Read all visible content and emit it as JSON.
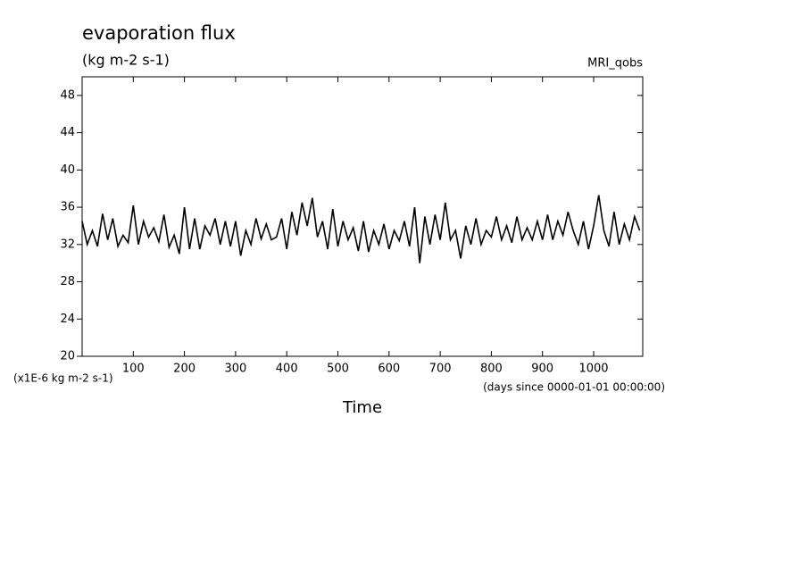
{
  "chart_data": {
    "type": "line",
    "title": "evaporation flux",
    "subtitle": "(kg m-2 s-1)",
    "dataset": "MRI_qobs",
    "y_label": "(x1E-6 kg m-2 s-1)",
    "x_units": "(days since 0000-01-01 00:00:00)",
    "x_label": "Time",
    "color": "#000000",
    "xlim": [
      0,
      1096
    ],
    "ylim": [
      20,
      50
    ],
    "xticks": [
      100,
      200,
      300,
      400,
      500,
      600,
      700,
      800,
      900,
      1000
    ],
    "yticks": [
      20,
      24,
      28,
      32,
      36,
      40,
      44,
      48
    ],
    "x": [
      0,
      10,
      20,
      30,
      40,
      50,
      60,
      70,
      80,
      90,
      100,
      110,
      120,
      130,
      140,
      150,
      160,
      170,
      180,
      190,
      200,
      210,
      220,
      230,
      240,
      250,
      260,
      270,
      280,
      290,
      300,
      310,
      320,
      330,
      340,
      350,
      360,
      370,
      380,
      390,
      400,
      410,
      420,
      430,
      440,
      450,
      460,
      470,
      480,
      490,
      500,
      510,
      520,
      530,
      540,
      550,
      560,
      570,
      580,
      590,
      600,
      610,
      620,
      630,
      640,
      650,
      660,
      670,
      680,
      690,
      700,
      710,
      720,
      730,
      740,
      750,
      760,
      770,
      780,
      790,
      800,
      810,
      820,
      830,
      840,
      850,
      860,
      870,
      880,
      890,
      900,
      910,
      920,
      930,
      940,
      950,
      960,
      970,
      980,
      990,
      1000,
      1010,
      1020,
      1030,
      1040,
      1050,
      1060,
      1070,
      1080,
      1090
    ],
    "values": [
      34.5,
      32,
      33.5,
      31.8,
      35.3,
      32.5,
      34.8,
      31.8,
      33,
      32.2,
      36.2,
      32,
      34.5,
      32.8,
      33.8,
      32.3,
      35.2,
      31.7,
      33,
      31,
      36,
      31.5,
      34.8,
      31.5,
      34,
      33,
      34.8,
      32,
      34.5,
      31.8,
      34.5,
      30.8,
      33.5,
      32,
      34.8,
      32.6,
      34.2,
      32.5,
      32.8,
      34.8,
      31.5,
      35.5,
      33,
      36.5,
      34,
      37,
      32.8,
      34.5,
      31.5,
      35.8,
      31.8,
      34.5,
      32.5,
      33.8,
      31.3,
      34.5,
      31.2,
      33.5,
      32,
      34.2,
      31.5,
      33.5,
      32.4,
      34.5,
      31.8,
      36,
      30,
      35,
      32,
      35.2,
      32.5,
      36.5,
      32.5,
      33.5,
      30.5,
      34,
      32,
      34.8,
      32,
      33.5,
      32.8,
      35,
      32.5,
      34,
      32.2,
      35,
      32.5,
      33.8,
      32.5,
      34.5,
      32.5,
      35.2,
      32.5,
      34.5,
      33,
      35.5,
      33.5,
      32,
      34.5,
      31.5,
      34,
      37.3,
      33.5,
      31.8,
      35.5,
      32,
      34.2,
      32.5,
      35,
      33.5
    ]
  }
}
